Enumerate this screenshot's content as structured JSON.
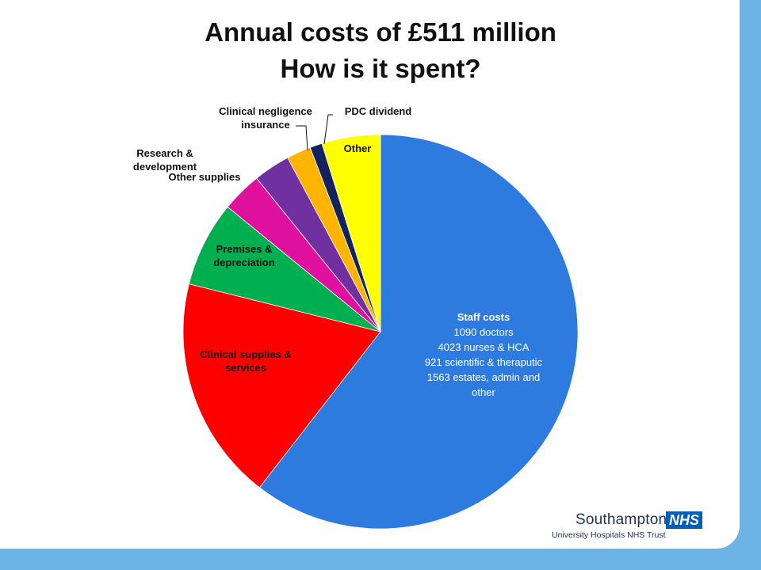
{
  "title": {
    "line1": "Annual costs of £511 million",
    "line2": "How is it spent?"
  },
  "logo": {
    "name": "Southampton",
    "nhs": "NHS",
    "trust": "University Hospitals NHS Trust"
  },
  "chart_data": {
    "type": "pie",
    "title": "Annual costs of £511 million How is it spent?",
    "slices": [
      {
        "name": "Staff costs",
        "label_lines": [
          "Staff costs",
          "1090 doctors",
          "4023 nurses & HCA",
          "921 scientific & theraputic",
          "1563 estates, admin and",
          "other"
        ],
        "percent": 60.5,
        "color": "#2e7be0"
      },
      {
        "name": "Clinical supplies & services",
        "label_lines": [
          "Clinical supplies &",
          "services"
        ],
        "percent": 18.4,
        "color": "#ff0000"
      },
      {
        "name": "Premises & depreciation",
        "label_lines": [
          "Premises &",
          "depreciation"
        ],
        "percent": 7.0,
        "color": "#00b050"
      },
      {
        "name": "Other supplies",
        "label_lines": [
          "Other supplies"
        ],
        "percent": 3.3,
        "color": "#e0109e"
      },
      {
        "name": "Research & development",
        "label_lines": [
          "Research &",
          "development"
        ],
        "percent": 3.0,
        "color": "#7030a0"
      },
      {
        "name": "Clinical negligence insurance",
        "label_lines": [
          "Clinical negligence",
          "insurance"
        ],
        "percent": 2.0,
        "color": "#ffb400"
      },
      {
        "name": "PDC dividend",
        "label_lines": [
          "PDC dividend"
        ],
        "percent": 1.0,
        "color": "#13235e"
      },
      {
        "name": "Other",
        "label_lines": [
          "Other"
        ],
        "percent": 4.8,
        "color": "#ffff00"
      }
    ]
  }
}
